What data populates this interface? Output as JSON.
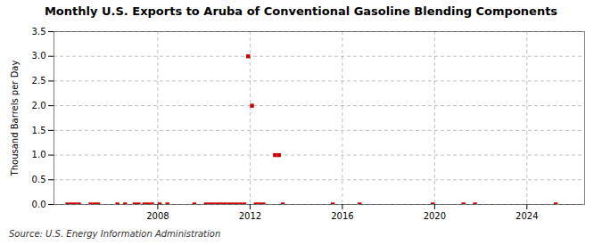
{
  "chart_data": {
    "type": "scatter",
    "title": "Monthly U.S. Exports to Aruba of Conventional Gasoline Blending Components",
    "ylabel": "Thousand Barrels per Day",
    "annotation": "Source: U.S. Energy Information Administration",
    "color": "#cc0000",
    "marker": "square",
    "grid": true,
    "xlim": [
      2003.5,
      2026.5
    ],
    "xticks": [
      2008,
      2012,
      2016,
      2020,
      2024
    ],
    "ylim": [
      0,
      3.5
    ],
    "yticks": [
      {
        "value": 0,
        "label": "0.0"
      },
      0.5,
      {
        "value": 1,
        "label": "1.0"
      },
      1.5,
      {
        "value": 2,
        "label": "2.0"
      },
      2.5,
      {
        "value": 3,
        "label": "3.0"
      },
      3.5
    ],
    "x": [
      2004.083,
      2004.25,
      2004.417,
      2004.583,
      2005.083,
      2005.25,
      2005.417,
      2006.25,
      2006.583,
      2007.0,
      2007.167,
      2007.417,
      2007.583,
      2007.75,
      2008.083,
      2008.417,
      2009.583,
      2010.083,
      2010.25,
      2010.417,
      2010.583,
      2010.75,
      2010.917,
      2011.083,
      2011.25,
      2011.417,
      2011.583,
      2011.75,
      2011.917,
      2012.083,
      2012.25,
      2012.417,
      2012.583,
      2013.083,
      2013.25,
      2013.417,
      2015.583,
      2016.75,
      2019.917,
      2021.25,
      2021.75,
      2025.25
    ],
    "values": [
      0.0,
      0.0,
      0.0,
      0.0,
      0.0,
      0.0,
      0.0,
      0.0,
      0.0,
      0.0,
      0.0,
      0.0,
      0.0,
      0.0,
      0.0,
      0.0,
      0.0,
      0.0,
      0.0,
      0.0,
      0.0,
      0.0,
      0.0,
      0.0,
      0.0,
      0.0,
      0.0,
      0.0,
      3.0,
      2.0,
      0.0,
      0.0,
      0.0,
      1.0,
      1.0,
      0.0,
      0.0,
      0.0,
      0.0,
      0.0,
      0.0,
      0.0
    ]
  }
}
